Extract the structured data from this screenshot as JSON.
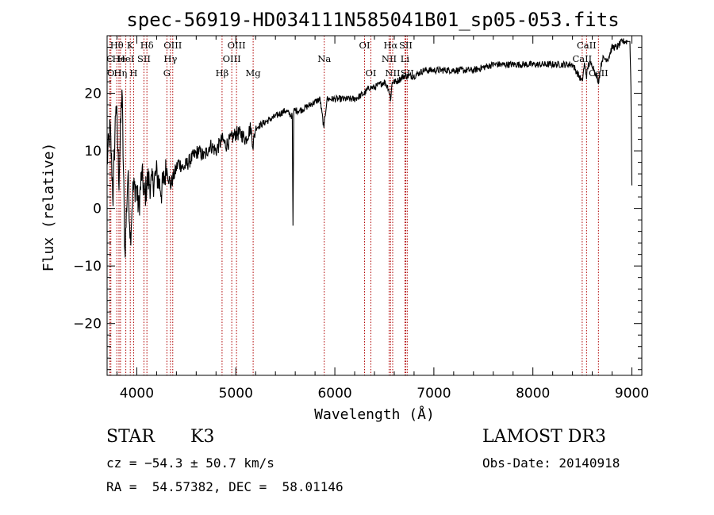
{
  "chart_data": {
    "type": "line",
    "title": "spec-56919-HD034111N585041B01_sp05-053.fits",
    "xlabel": "Wavelength (Å)",
    "ylabel": "Flux (relative)",
    "xlim": [
      3700,
      9100
    ],
    "ylim": [
      -29,
      30
    ],
    "x_ticks": [
      4000,
      5000,
      6000,
      7000,
      8000,
      9000
    ],
    "y_ticks": [
      20,
      10,
      0,
      -10,
      -20
    ],
    "y_tick_labels": [
      "20",
      "10",
      "0",
      "−10",
      "−20"
    ],
    "series": [
      {
        "name": "spectrum",
        "x": [
          3700,
          3730,
          3760,
          3790,
          3820,
          3850,
          3880,
          3910,
          3935,
          3960,
          3990,
          4020,
          4050,
          4080,
          4110,
          4150,
          4200,
          4250,
          4300,
          4340,
          4380,
          4420,
          4470,
          4520,
          4570,
          4620,
          4680,
          4740,
          4800,
          4861,
          4900,
          4950,
          5000,
          5050,
          5100,
          5150,
          5175,
          5200,
          5300,
          5400,
          5500,
          5570,
          5577,
          5585,
          5650,
          5750,
          5850,
          5890,
          5895,
          5920,
          6000,
          6100,
          6200,
          6300,
          6350,
          6400,
          6500,
          6540,
          6563,
          6580,
          6620,
          6700,
          6800,
          6900,
          7000,
          7200,
          7400,
          7600,
          7800,
          8000,
          8200,
          8400,
          8498,
          8520,
          8542,
          8560,
          8600,
          8662,
          8700,
          8760,
          8800,
          8850,
          8900,
          8930,
          8960,
          8980,
          8990,
          9000
        ],
        "y": [
          8,
          14,
          2,
          19,
          5,
          21,
          -8,
          6,
          -5,
          3,
          4,
          0,
          6,
          2,
          5,
          4,
          6,
          3,
          7,
          4,
          6,
          8,
          7,
          8,
          9,
          10,
          9,
          11,
          10,
          12,
          11,
          12,
          13,
          13,
          12,
          14,
          11,
          14,
          15,
          16,
          17,
          16,
          -3,
          17,
          17,
          18,
          19,
          14,
          15,
          19,
          19,
          19,
          19,
          20,
          21,
          21,
          22,
          21,
          19,
          22,
          22,
          23,
          23,
          24,
          24,
          24,
          24,
          25,
          25,
          25,
          25,
          25,
          22,
          25,
          23,
          25,
          25,
          22,
          26,
          26,
          28,
          28,
          29,
          29,
          29,
          29,
          21,
          4
        ]
      }
    ],
    "line_markers": [
      {
        "label": "Hθ",
        "wavelength": 3798,
        "row": 1
      },
      {
        "label": "C",
        "wavelength": 3727,
        "row": 2
      },
      {
        "label": "O",
        "wavelength": 3738,
        "row": 3
      },
      {
        "label": "He",
        "wavelength": 3820,
        "row": 2
      },
      {
        "label": "Hη",
        "wavelength": 3835,
        "row": 3
      },
      {
        "label": "K",
        "wavelength": 3934,
        "row": 1
      },
      {
        "label": "HeI",
        "wavelength": 3889,
        "row": 2
      },
      {
        "label": "H",
        "wavelength": 3968,
        "row": 3
      },
      {
        "label": "SII",
        "wavelength": 4072,
        "row": 2
      },
      {
        "label": "Hδ",
        "wavelength": 4102,
        "row": 1
      },
      {
        "label": "OIII",
        "wavelength": 4363,
        "row": 1
      },
      {
        "label": "Hγ",
        "wavelength": 4340,
        "row": 2
      },
      {
        "label": "G",
        "wavelength": 4304,
        "row": 3
      },
      {
        "label": "Hβ",
        "wavelength": 4861,
        "row": 3
      },
      {
        "label": "OIII",
        "wavelength": 5007,
        "row": 1
      },
      {
        "label": "OIII",
        "wavelength": 4959,
        "row": 2
      },
      {
        "label": "Mg",
        "wavelength": 5175,
        "row": 3
      },
      {
        "label": "Na",
        "wavelength": 5893,
        "row": 2
      },
      {
        "label": "OI",
        "wavelength": 6300,
        "row": 1
      },
      {
        "label": "OI",
        "wavelength": 6364,
        "row": 3
      },
      {
        "label": "Hα",
        "wavelength": 6563,
        "row": 1
      },
      {
        "label": "SII",
        "wavelength": 6716,
        "row": 1
      },
      {
        "label": "NII",
        "wavelength": 6548,
        "row": 2
      },
      {
        "label": "Li",
        "wavelength": 6708,
        "row": 2
      },
      {
        "label": "NII",
        "wavelength": 6584,
        "row": 3
      },
      {
        "label": "SII",
        "wavelength": 6731,
        "row": 3
      },
      {
        "label": "CaII",
        "wavelength": 8542,
        "row": 1
      },
      {
        "label": "CaII",
        "wavelength": 8498,
        "row": 2
      },
      {
        "label": "CaII",
        "wavelength": 8662,
        "row": 3
      }
    ],
    "marker_wavelengths": [
      3727,
      3738,
      3798,
      3820,
      3835,
      3889,
      3934,
      3968,
      4072,
      4102,
      4304,
      4340,
      4363,
      4861,
      4959,
      5007,
      5175,
      5893,
      6300,
      6364,
      6548,
      6563,
      6584,
      6708,
      6716,
      6731,
      8498,
      8542,
      8662
    ],
    "marker_color": "#b00000",
    "line_color": "#000000"
  },
  "info": {
    "object_class": "STAR",
    "subclass": "K3",
    "survey": "LAMOST DR3",
    "redshift": "cz = −54.3 ± 50.7 km/s",
    "obs_date": "Obs-Date: 20140918",
    "coords": "RA =  54.57382, DEC =  58.01146"
  }
}
